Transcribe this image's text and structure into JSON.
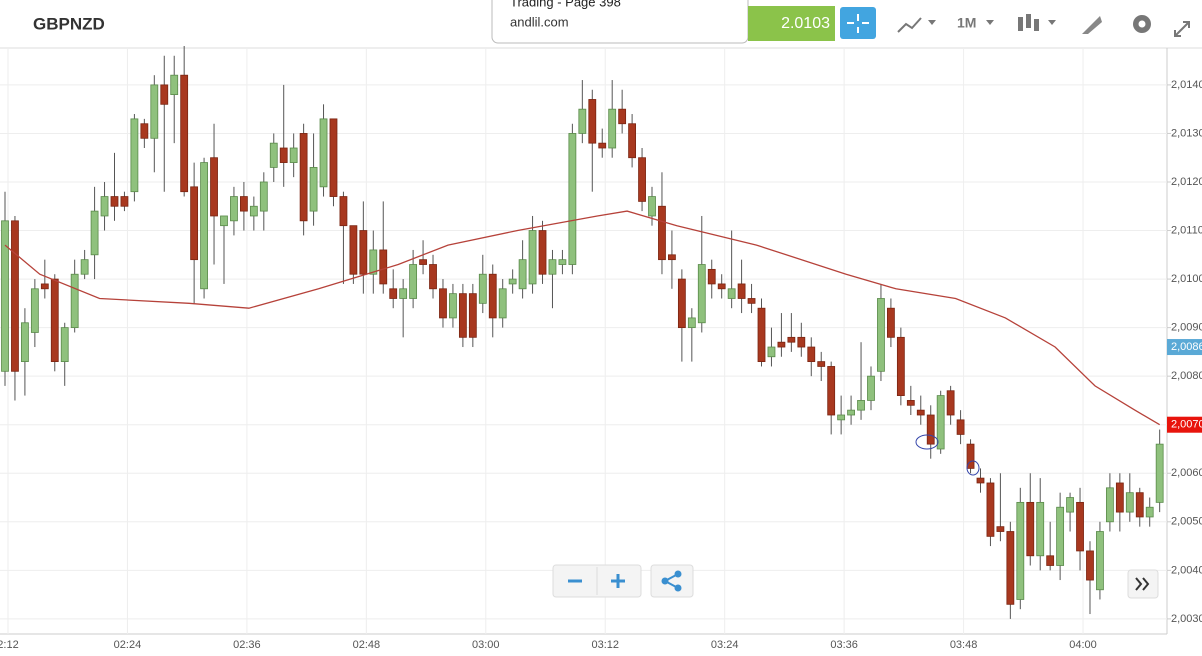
{
  "header": {
    "symbol": "GBPNZD",
    "popup_title": "Trading - Page 398",
    "popup_url": "andlil.com",
    "price": "2.0103",
    "timeframe": "1M"
  },
  "chart_data": {
    "type": "candlestick",
    "categories": [
      "2:12",
      null,
      null,
      null,
      null,
      null,
      null,
      null,
      null,
      null,
      null,
      null,
      "02:24",
      null,
      null,
      null,
      null,
      null,
      null,
      null,
      null,
      null,
      null,
      null,
      "02:36",
      null,
      null,
      null,
      null,
      null,
      null,
      null,
      null,
      null,
      null,
      null,
      "02:48",
      null,
      null,
      null,
      null,
      null,
      null,
      null,
      null,
      null,
      null,
      null,
      "03:00",
      null,
      null,
      null,
      null,
      null,
      null,
      null,
      null,
      null,
      null,
      null,
      "03:12",
      null,
      null,
      null,
      null,
      null,
      null,
      null,
      null,
      null,
      null,
      null,
      "03:24",
      null,
      null,
      null,
      null,
      null,
      null,
      null,
      null,
      null,
      null,
      null,
      "03:36",
      null,
      null,
      null,
      null,
      null,
      null,
      null,
      null,
      null,
      null,
      null,
      "03:48",
      null,
      null,
      null,
      null,
      null,
      null,
      null,
      null,
      null,
      null,
      null,
      "04:00",
      null,
      null,
      null,
      null,
      null,
      null,
      null,
      null
    ],
    "ohlc": [
      [
        2.0081,
        2.0118,
        2.0078,
        2.0112
      ],
      [
        2.0112,
        2.0113,
        2.0075,
        2.0081
      ],
      [
        2.0083,
        2.0094,
        2.0076,
        2.0091
      ],
      [
        2.0089,
        2.01,
        2.0086,
        2.0098
      ],
      [
        2.0099,
        2.0104,
        2.0096,
        2.0098
      ],
      [
        2.01,
        2.0101,
        2.0081,
        2.0083
      ],
      [
        2.0083,
        2.0091,
        2.0078,
        2.009
      ],
      [
        2.009,
        2.0104,
        2.0089,
        2.0101
      ],
      [
        2.0101,
        2.0106,
        2.01,
        2.0104
      ],
      [
        2.0105,
        2.0119,
        2.01,
        2.0114
      ],
      [
        2.0113,
        2.012,
        2.011,
        2.0117
      ],
      [
        2.0117,
        2.0126,
        2.0112,
        2.0115
      ],
      [
        2.0117,
        2.0118,
        2.0114,
        2.0115
      ],
      [
        2.0118,
        2.0134,
        2.0116,
        2.0133
      ],
      [
        2.0132,
        2.0133,
        2.0127,
        2.0129
      ],
      [
        2.0129,
        2.0142,
        2.0122,
        2.014
      ],
      [
        2.014,
        2.0146,
        2.0118,
        2.0136
      ],
      [
        2.0138,
        2.0146,
        2.0128,
        2.0142
      ],
      [
        2.0142,
        2.0148,
        2.0117,
        2.0118
      ],
      [
        2.0119,
        2.0124,
        2.0095,
        2.0104
      ],
      [
        2.0098,
        2.0125,
        2.0096,
        2.0124
      ],
      [
        2.0125,
        2.0132,
        2.0103,
        2.0113
      ],
      [
        2.0111,
        2.0113,
        2.0099,
        2.0113
      ],
      [
        2.0112,
        2.0119,
        2.0109,
        2.0117
      ],
      [
        2.0117,
        2.012,
        2.011,
        2.0114
      ],
      [
        2.0113,
        2.0117,
        2.011,
        2.0115
      ],
      [
        2.0114,
        2.0122,
        2.011,
        2.012
      ],
      [
        2.0123,
        2.013,
        2.012,
        2.0128
      ],
      [
        2.0127,
        2.014,
        2.0119,
        2.0124
      ],
      [
        2.0124,
        2.013,
        2.0121,
        2.0127
      ],
      [
        2.013,
        2.0132,
        2.0109,
        2.0112
      ],
      [
        2.0114,
        2.013,
        2.0111,
        2.0123
      ],
      [
        2.0119,
        2.0136,
        2.0117,
        2.0133
      ],
      [
        2.0133,
        2.0133,
        2.0115,
        2.0117
      ],
      [
        2.0117,
        2.0118,
        2.0099,
        2.0111
      ],
      [
        2.0111,
        2.0111,
        2.0099,
        2.0101
      ],
      [
        2.011,
        2.0116,
        2.0097,
        2.0101
      ],
      [
        2.0101,
        2.011,
        2.0097,
        2.0106
      ],
      [
        2.0106,
        2.0116,
        2.0097,
        2.0099
      ],
      [
        2.0098,
        2.0102,
        2.0094,
        2.0096
      ],
      [
        2.0096,
        2.01,
        2.0088,
        2.0098
      ],
      [
        2.0096,
        2.0106,
        2.0094,
        2.0103
      ],
      [
        2.0104,
        2.0108,
        2.0101,
        2.0103
      ],
      [
        2.0103,
        2.0105,
        2.0096,
        2.0098
      ],
      [
        2.0098,
        2.01,
        2.009,
        2.0092
      ],
      [
        2.0092,
        2.0099,
        2.009,
        2.0097
      ],
      [
        2.0097,
        2.0099,
        2.0086,
        2.0088
      ],
      [
        2.0097,
        2.0099,
        2.0086,
        2.0088
      ],
      [
        2.0095,
        2.0105,
        2.0093,
        2.0101
      ],
      [
        2.0101,
        2.0103,
        2.0088,
        2.0092
      ],
      [
        2.0092,
        2.01,
        2.009,
        2.0098
      ],
      [
        2.0099,
        2.0102,
        2.0097,
        2.01
      ],
      [
        2.0098,
        2.0108,
        2.0096,
        2.0104
      ],
      [
        2.0099,
        2.0113,
        2.0097,
        2.011
      ],
      [
        2.011,
        2.0112,
        2.0099,
        2.0101
      ],
      [
        2.0101,
        2.0106,
        2.0094,
        2.0104
      ],
      [
        2.0103,
        2.0106,
        2.0101,
        2.0104
      ],
      [
        2.0103,
        2.0132,
        2.0101,
        2.013
      ],
      [
        2.013,
        2.0141,
        2.0128,
        2.0135
      ],
      [
        2.0137,
        2.0139,
        2.0118,
        2.0128
      ],
      [
        2.0128,
        2.0131,
        2.0125,
        2.0127
      ],
      [
        2.0127,
        2.0141,
        2.0125,
        2.0135
      ],
      [
        2.0135,
        2.0139,
        2.013,
        2.0132
      ],
      [
        2.0132,
        2.0134,
        2.0123,
        2.0125
      ],
      [
        2.0125,
        2.0127,
        2.0114,
        2.0116
      ],
      [
        2.0113,
        2.0119,
        2.0111,
        2.0117
      ],
      [
        2.0115,
        2.0122,
        2.0101,
        2.0104
      ],
      [
        2.0105,
        2.011,
        2.0098,
        2.0104
      ],
      [
        2.01,
        2.0102,
        2.0083,
        2.009
      ],
      [
        2.009,
        2.0094,
        2.0083,
        2.0092
      ],
      [
        2.0091,
        2.0113,
        2.0089,
        2.0103
      ],
      [
        2.0102,
        2.0104,
        2.0096,
        2.0099
      ],
      [
        2.0099,
        2.0101,
        2.0096,
        2.0098
      ],
      [
        2.0096,
        2.011,
        2.0094,
        2.0098
      ],
      [
        2.0099,
        2.0104,
        2.0093,
        2.0096
      ],
      [
        2.0096,
        2.0099,
        2.0093,
        2.0095
      ],
      [
        2.0094,
        2.0096,
        2.0082,
        2.0083
      ],
      [
        2.0084,
        2.009,
        2.0082,
        2.0086
      ],
      [
        2.0087,
        2.0093,
        2.0084,
        2.0086
      ],
      [
        2.0088,
        2.0093,
        2.0085,
        2.0087
      ],
      [
        2.0088,
        2.0091,
        2.0084,
        2.0086
      ],
      [
        2.0086,
        2.0088,
        2.008,
        2.0083
      ],
      [
        2.0083,
        2.0085,
        2.0079,
        2.0082
      ],
      [
        2.0082,
        2.0083,
        2.0068,
        2.0072
      ],
      [
        2.0071,
        2.0076,
        2.0068,
        2.0072
      ],
      [
        2.0072,
        2.0076,
        2.007,
        2.0073
      ],
      [
        2.0073,
        2.0087,
        2.0071,
        2.0075
      ],
      [
        2.0075,
        2.0082,
        2.0073,
        2.008
      ],
      [
        2.0081,
        2.0099,
        2.0079,
        2.0096
      ],
      [
        2.0094,
        2.0096,
        2.0086,
        2.0088
      ],
      [
        2.0088,
        2.009,
        2.0074,
        2.0076
      ],
      [
        2.0075,
        2.0078,
        2.0072,
        2.0074
      ],
      [
        2.0073,
        2.0076,
        2.007,
        2.0072
      ],
      [
        2.0072,
        2.0074,
        2.0063,
        2.0066
      ],
      [
        2.0065,
        2.0077,
        2.0064,
        2.0076
      ],
      [
        2.0077,
        2.0078,
        2.007,
        2.0072
      ],
      [
        2.0071,
        2.0073,
        2.0066,
        2.0068
      ],
      [
        2.0066,
        2.0067,
        2.006,
        2.0061
      ],
      [
        2.0059,
        2.0061,
        2.0056,
        2.0058
      ],
      [
        2.0058,
        2.0059,
        2.0045,
        2.0047
      ],
      [
        2.0049,
        2.006,
        2.0046,
        2.0048
      ],
      [
        2.0048,
        2.005,
        2.003,
        2.0033
      ],
      [
        2.0034,
        2.0057,
        2.0032,
        2.0054
      ],
      [
        2.0054,
        2.006,
        2.0041,
        2.0043
      ],
      [
        2.0043,
        2.0059,
        2.004,
        2.0054
      ],
      [
        2.0043,
        2.005,
        2.004,
        2.0041
      ],
      [
        2.0041,
        2.0056,
        2.0038,
        2.0053
      ],
      [
        2.0052,
        2.0056,
        2.0048,
        2.0055
      ],
      [
        2.0054,
        2.0057,
        2.004,
        2.0044
      ],
      [
        2.0044,
        2.0046,
        2.0031,
        2.0038
      ],
      [
        2.0036,
        2.005,
        2.0034,
        2.0048
      ],
      [
        2.005,
        2.006,
        2.0048,
        2.0057
      ],
      [
        2.0058,
        2.006,
        2.0048,
        2.0052
      ],
      [
        2.0052,
        2.006,
        2.005,
        2.0056
      ],
      [
        2.0056,
        2.0057,
        2.0049,
        2.0051
      ],
      [
        2.0051,
        2.0055,
        2.0049,
        2.0053
      ],
      [
        2.0054,
        2.0069,
        2.0052,
        2.0066
      ]
    ],
    "up_color": "#8fc17d",
    "down_color": "#a8381f",
    "moving_average": {
      "color": "#b6423a",
      "x": [
        0,
        3.5,
        9.5,
        18.5,
        24.5,
        31.5,
        39.5,
        44.5,
        51.5,
        59.5,
        62.5,
        67.5,
        75.5,
        84.5,
        89.5,
        95.5,
        100.5,
        105.5,
        109.5,
        113.5,
        116
      ],
      "values": [
        2.0107,
        2.0101,
        2.0096,
        2.0095,
        2.0094,
        2.0098,
        2.0103,
        2.0107,
        2.011,
        2.0113,
        2.0114,
        2.0111,
        2.0107,
        2.0101,
        2.0098,
        2.0096,
        2.0092,
        2.0086,
        2.0078,
        2.0073,
        2.007
      ]
    },
    "ylim": [
      2.00273,
      2.01476
    ],
    "yticks": [
      {
        "value": 2.003,
        "label": "2,0030"
      },
      {
        "value": 2.004,
        "label": "2,0040"
      },
      {
        "value": 2.005,
        "label": "2,0050"
      },
      {
        "value": 2.006,
        "label": "2,0060"
      },
      {
        "value": 2.007,
        "label": "2,0070"
      },
      {
        "value": 2.008,
        "label": "2,0080"
      },
      {
        "value": 2.009,
        "label": "2,0090"
      },
      {
        "value": 2.01,
        "label": "2,0100"
      },
      {
        "value": 2.011,
        "label": "2,0110"
      },
      {
        "value": 2.012,
        "label": "2,0120"
      },
      {
        "value": 2.013,
        "label": "2,0130"
      },
      {
        "value": 2.014,
        "label": "2,0140"
      }
    ],
    "price_tags": [
      {
        "value": 2.0086,
        "label": "2,0086",
        "color": "#5aa9d6"
      },
      {
        "value": 2.007,
        "label": "2,0070",
        "color": "#e8140c"
      }
    ],
    "grid": true
  }
}
